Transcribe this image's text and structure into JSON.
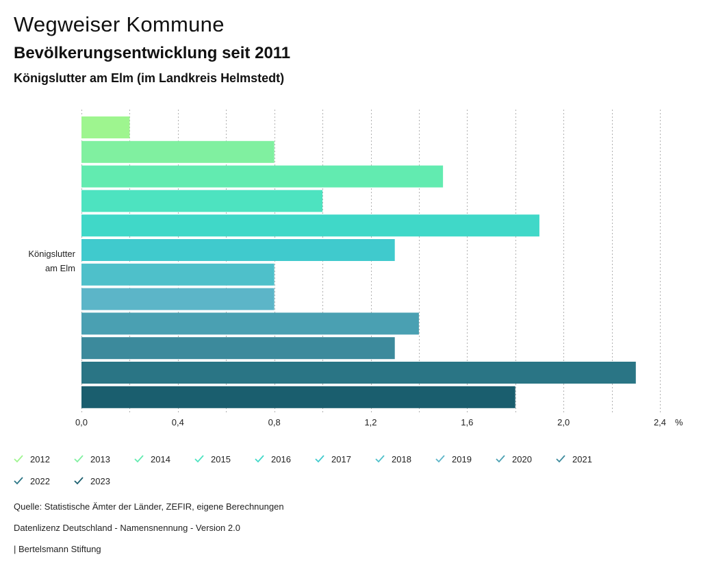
{
  "header": {
    "title": "Wegweiser Kommune",
    "subtitle": "Bevölkerungsentwicklung seit 2011",
    "region": "Königslutter am Elm (im Landkreis Helmstedt)"
  },
  "chart_data": {
    "type": "bar",
    "orientation": "horizontal",
    "categories": [
      "Königslutter am Elm"
    ],
    "category_label_lines": [
      "Königslutter",
      "am Elm"
    ],
    "series": [
      {
        "name": "2012",
        "values": [
          0.2
        ],
        "color": "#9ef58f"
      },
      {
        "name": "2013",
        "values": [
          0.8
        ],
        "color": "#80f0a0"
      },
      {
        "name": "2014",
        "values": [
          1.5
        ],
        "color": "#62ebb0"
      },
      {
        "name": "2015",
        "values": [
          1.0
        ],
        "color": "#4de3c0"
      },
      {
        "name": "2016",
        "values": [
          1.9
        ],
        "color": "#40d8c8"
      },
      {
        "name": "2017",
        "values": [
          1.3
        ],
        "color": "#40cacd"
      },
      {
        "name": "2018",
        "values": [
          0.8
        ],
        "color": "#4ec0ca"
      },
      {
        "name": "2019",
        "values": [
          0.8
        ],
        "color": "#5cb5c8"
      },
      {
        "name": "2020",
        "values": [
          1.4
        ],
        "color": "#4aa0b2"
      },
      {
        "name": "2021",
        "values": [
          1.3
        ],
        "color": "#3c8a9c"
      },
      {
        "name": "2022",
        "values": [
          2.3
        ],
        "color": "#2a7585"
      },
      {
        "name": "2023",
        "values": [
          1.8
        ],
        "color": "#1a5e6e"
      }
    ],
    "xlim": [
      0,
      2.4
    ],
    "x_ticks": [
      0,
      0.4,
      0.8,
      1.2,
      1.6,
      2.0,
      2.4
    ],
    "x_tick_labels": [
      "0,0",
      "0,4",
      "0,8",
      "1,2",
      "1,6",
      "2,0",
      "2,4"
    ],
    "x_unit": "%",
    "grid": true,
    "legend_position": "bottom"
  },
  "footer": {
    "source": "Quelle: Statistische Ämter der Länder, ZEFIR, eigene Berechnungen",
    "license": "Datenlizenz Deutschland - Namensnennung - Version 2.0",
    "credit": "| Bertelsmann Stiftung"
  }
}
